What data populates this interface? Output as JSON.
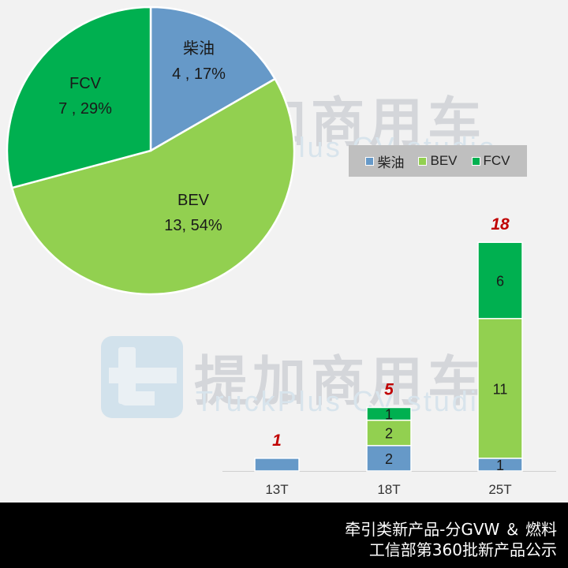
{
  "watermark": {
    "brand_cn": "提加商用车",
    "brand_en": "TruckPlus CV studio"
  },
  "colors": {
    "diesel": "#6699c8",
    "bev": "#92d050",
    "fcv": "#00b050",
    "total_label": "#c00000",
    "background": "#f2f2f2",
    "legend_bg": "#bfbfbf",
    "footer_bg": "#000000"
  },
  "legend": {
    "items": [
      {
        "label": "柴油",
        "color": "#6699c8"
      },
      {
        "label": "BEV",
        "color": "#92d050"
      },
      {
        "label": "FCV",
        "color": "#00b050"
      }
    ]
  },
  "footer": {
    "line1": "牵引类新产品-分GVW ＆ 燃料",
    "line2": "工信部第360批新产品公示"
  },
  "chart_data": [
    {
      "type": "pie",
      "title": "",
      "slices": [
        {
          "name": "柴油",
          "value": 4,
          "percent": 17,
          "label_name": "柴油",
          "label_value": "4 , 17%"
        },
        {
          "name": "BEV",
          "value": 13,
          "percent": 54,
          "label_name": "BEV",
          "label_value": "13, 54%"
        },
        {
          "name": "FCV",
          "value": 7,
          "percent": 29,
          "label_name": "FCV",
          "label_value": "7 , 29%"
        }
      ],
      "start_angle_deg": 0,
      "direction": "clockwise"
    },
    {
      "type": "bar",
      "stacked": true,
      "title": "",
      "xlabel": "",
      "ylabel": "",
      "categories": [
        "13T",
        "18T",
        "25T"
      ],
      "series": [
        {
          "name": "柴油",
          "values": [
            1,
            2,
            1
          ],
          "labels": [
            "",
            "2",
            "1"
          ]
        },
        {
          "name": "BEV",
          "values": [
            0,
            2,
            11
          ],
          "labels": [
            "",
            "2",
            "11"
          ]
        },
        {
          "name": "FCV",
          "values": [
            0,
            1,
            6
          ],
          "labels": [
            "",
            "1",
            "6"
          ]
        }
      ],
      "totals": [
        "1",
        "5",
        "18"
      ],
      "ylim": [
        0,
        18
      ],
      "grid": false,
      "legend_position": "top-right"
    }
  ]
}
